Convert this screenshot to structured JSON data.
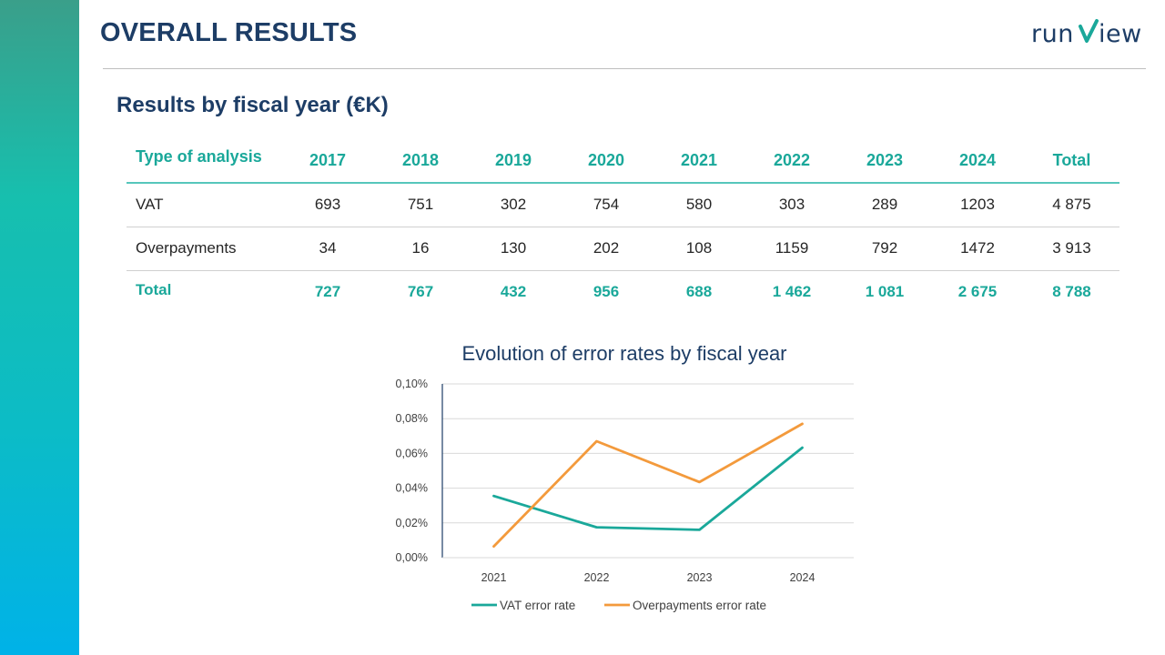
{
  "header": {
    "title": "OVERALL RESULTS",
    "logo_text": "runview"
  },
  "section": {
    "title": "Results by fiscal year (€K)"
  },
  "table": {
    "headers": [
      "Type of analysis",
      "2017",
      "2018",
      "2019",
      "2020",
      "2021",
      "2022",
      "2023",
      "2024",
      "Total"
    ],
    "rows": [
      [
        "VAT",
        "693",
        "751",
        "302",
        "754",
        "580",
        "303",
        "289",
        "1203",
        "4 875"
      ],
      [
        "Overpayments",
        "34",
        "16",
        "130",
        "202",
        "108",
        "1159",
        "792",
        "1472",
        "3 913"
      ]
    ],
    "total_row": [
      "Total",
      "727",
      "767",
      "432",
      "956",
      "688",
      "1 462",
      "1 081",
      "2 675",
      "8 788"
    ]
  },
  "colors": {
    "navy": "#1d3d66",
    "teal": "#1aa89a",
    "orange": "#f39a3c"
  },
  "chart_data": {
    "type": "line",
    "title": "Evolution of error rates by fiscal year",
    "categories": [
      "2021",
      "2022",
      "2023",
      "2024"
    ],
    "y_ticks": [
      "0,00%",
      "0,02%",
      "0,04%",
      "0,06%",
      "0,08%",
      "0,10%"
    ],
    "ylim": [
      0,
      0.1
    ],
    "grid": true,
    "legend_position": "bottom",
    "series": [
      {
        "name": "VAT error rate",
        "color": "#1aa89a",
        "values": [
          0.0355,
          0.0175,
          0.016,
          0.0633
        ]
      },
      {
        "name": "Overpayments error rate",
        "color": "#f39a3c",
        "values": [
          0.0065,
          0.067,
          0.0435,
          0.077
        ]
      }
    ]
  }
}
